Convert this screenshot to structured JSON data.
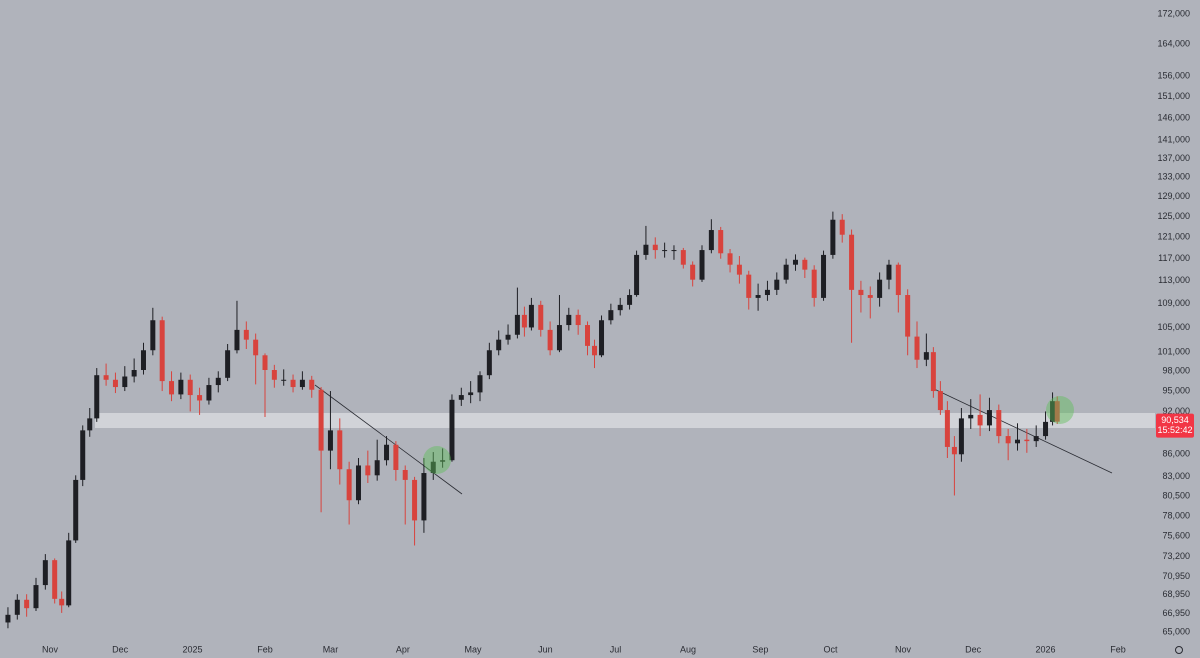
{
  "chart_data": {
    "type": "candlestick",
    "log_scale": true,
    "up_color": "#1e1f24",
    "down_color": "#d8433d",
    "xlim": [
      -21.4,
      470.7
    ],
    "ylim": [
      63700,
      175800
    ],
    "xticks": [
      {
        "value": 0,
        "label": "Nov"
      },
      {
        "value": 30,
        "label": "Dec"
      },
      {
        "value": 61,
        "label": "2025"
      },
      {
        "value": 92,
        "label": "Feb"
      },
      {
        "value": 120,
        "label": "Mar"
      },
      {
        "value": 151,
        "label": "Apr"
      },
      {
        "value": 181,
        "label": "May"
      },
      {
        "value": 212,
        "label": "Jun"
      },
      {
        "value": 242,
        "label": "Jul"
      },
      {
        "value": 273,
        "label": "Aug"
      },
      {
        "value": 304,
        "label": "Sep"
      },
      {
        "value": 334,
        "label": "Oct"
      },
      {
        "value": 365,
        "label": "Nov"
      },
      {
        "value": 395,
        "label": "Dec"
      },
      {
        "value": 426,
        "label": "2026"
      },
      {
        "value": 457,
        "label": "Feb"
      }
    ],
    "yticks": [
      {
        "value": 65000,
        "label": "65,000"
      },
      {
        "value": 66950,
        "label": "66,950"
      },
      {
        "value": 68950,
        "label": "68,950"
      },
      {
        "value": 70950,
        "label": "70,950"
      },
      {
        "value": 73200,
        "label": "73,200"
      },
      {
        "value": 75600,
        "label": "75,600"
      },
      {
        "value": 78000,
        "label": "78,000"
      },
      {
        "value": 80500,
        "label": "80,500"
      },
      {
        "value": 83000,
        "label": "83,000"
      },
      {
        "value": 86000,
        "label": "86,000"
      },
      {
        "value": 92000,
        "label": "92,000"
      },
      {
        "value": 95000,
        "label": "95,000"
      },
      {
        "value": 98000,
        "label": "98,000"
      },
      {
        "value": 101000,
        "label": "101,000"
      },
      {
        "value": 105000,
        "label": "105,000"
      },
      {
        "value": 109000,
        "label": "109,000"
      },
      {
        "value": 113000,
        "label": "113,000"
      },
      {
        "value": 117000,
        "label": "117,000"
      },
      {
        "value": 121000,
        "label": "121,000"
      },
      {
        "value": 125000,
        "label": "125,000"
      },
      {
        "value": 129000,
        "label": "129,000"
      },
      {
        "value": 133000,
        "label": "133,000"
      },
      {
        "value": 137000,
        "label": "137,000"
      },
      {
        "value": 141000,
        "label": "141,000"
      },
      {
        "value": 146000,
        "label": "146,000"
      },
      {
        "value": 151000,
        "label": "151,000"
      },
      {
        "value": 156000,
        "label": "156,000"
      },
      {
        "value": 164000,
        "label": "164,000"
      },
      {
        "value": 172000,
        "label": "172,000"
      }
    ],
    "last_price": {
      "value": 90534,
      "label": "90,534"
    },
    "countdown": "15:52:42",
    "x": [
      -18,
      -14,
      -10,
      -6,
      -2,
      2,
      5,
      8,
      11,
      14,
      17,
      20,
      24,
      28,
      32,
      36,
      40,
      44,
      48,
      52,
      56,
      60,
      64,
      68,
      72,
      76,
      80,
      84,
      88,
      92,
      96,
      100,
      104,
      108,
      112,
      116,
      120,
      124,
      128,
      132,
      136,
      140,
      144,
      148,
      152,
      156,
      160,
      164,
      168,
      172,
      176,
      180,
      184,
      188,
      192,
      196,
      200,
      203,
      206,
      210,
      214,
      218,
      222,
      226,
      230,
      233,
      236,
      240,
      244,
      248,
      251,
      255,
      259,
      263,
      267,
      271,
      275,
      279,
      283,
      287,
      291,
      295,
      299,
      303,
      307,
      311,
      315,
      319,
      323,
      327,
      331,
      335,
      339,
      343,
      347,
      351,
      355,
      359,
      363,
      367,
      371,
      375,
      378,
      381,
      384,
      387,
      390,
      394,
      398,
      402,
      406,
      410,
      414,
      418,
      422,
      426,
      429,
      431
    ],
    "open": [
      66000,
      66800,
      68400,
      67500,
      70000,
      72800,
      68500,
      67800,
      75100,
      82600,
      89300,
      91000,
      97400,
      96700,
      95600,
      97200,
      98200,
      101300,
      106200,
      96500,
      94500,
      96700,
      94400,
      93600,
      95900,
      97000,
      101300,
      104600,
      103000,
      100500,
      98200,
      96700,
      96700,
      95600,
      96700,
      95200,
      86500,
      89300,
      84000,
      80000,
      84500,
      83200,
      85200,
      87300,
      83900,
      82600,
      77500,
      83500,
      85000,
      85200,
      93700,
      94400,
      94800,
      97400,
      101300,
      103000,
      103800,
      107100,
      105000,
      108800,
      104600,
      101300,
      105400,
      107100,
      105400,
      102000,
      100500,
      106200,
      107900,
      108800,
      110500,
      117700,
      119600,
      118600,
      118600,
      118600,
      115900,
      113200,
      118600,
      122400,
      118000,
      115900,
      114100,
      110000,
      110500,
      111400,
      113200,
      115900,
      116800,
      115000,
      110000,
      117700,
      124400,
      121500,
      111400,
      110500,
      110000,
      113200,
      115900,
      110500,
      103500,
      99800,
      101000,
      95000,
      92200,
      87000,
      86000,
      91000,
      91500,
      90000,
      92200,
      88500,
      87500,
      88000,
      87800,
      88500,
      90500,
      93500
    ],
    "high": [
      67600,
      69000,
      69000,
      70800,
      73500,
      73000,
      69300,
      76000,
      83200,
      90000,
      92500,
      98500,
      99200,
      97800,
      98800,
      100000,
      102500,
      108300,
      106800,
      98000,
      97800,
      97500,
      95500,
      97000,
      98000,
      102300,
      109500,
      106000,
      104000,
      100800,
      99000,
      98300,
      97500,
      98000,
      97300,
      95600,
      95000,
      91000,
      85000,
      85500,
      86500,
      88000,
      88500,
      87800,
      84500,
      83000,
      85500,
      86300,
      86800,
      94500,
      95500,
      96500,
      98000,
      102500,
      104500,
      105500,
      111800,
      108500,
      110000,
      109500,
      106000,
      110500,
      108300,
      108000,
      106000,
      103000,
      107000,
      109000,
      110000,
      111500,
      118500,
      123200,
      121000,
      120000,
      119500,
      119000,
      116500,
      119500,
      124500,
      123000,
      118800,
      117500,
      114800,
      112500,
      113000,
      114500,
      117000,
      117800,
      117200,
      115800,
      118500,
      126000,
      125500,
      122500,
      113000,
      112000,
      114500,
      116800,
      116300,
      111500,
      106000,
      104000,
      101800,
      96500,
      93500,
      88500,
      92500,
      93800,
      94500,
      94000,
      93000,
      89500,
      90300,
      89500,
      90000,
      92000,
      94800,
      94200
    ],
    "low": [
      65400,
      66300,
      66600,
      67200,
      69500,
      68000,
      67000,
      67600,
      74800,
      81800,
      88400,
      90500,
      95800,
      94700,
      95000,
      96300,
      97500,
      100500,
      95000,
      93500,
      93800,
      92000,
      91500,
      93000,
      94800,
      96500,
      100800,
      101500,
      96000,
      91200,
      95500,
      95800,
      94800,
      95200,
      94000,
      78500,
      84000,
      82000,
      77000,
      79500,
      82200,
      82500,
      84500,
      82500,
      77000,
      74500,
      76000,
      82600,
      84200,
      85000,
      92800,
      93200,
      93500,
      96800,
      100500,
      102200,
      103200,
      103500,
      104500,
      103500,
      100500,
      101000,
      104500,
      103800,
      100500,
      98500,
      100200,
      105500,
      107000,
      108000,
      110200,
      116800,
      117000,
      117200,
      116800,
      115200,
      112000,
      112800,
      118000,
      117000,
      114500,
      112500,
      108000,
      107800,
      109500,
      110500,
      112500,
      114800,
      113500,
      108500,
      109500,
      117000,
      120000,
      102500,
      107500,
      106500,
      108500,
      111500,
      107500,
      100500,
      98500,
      98800,
      94000,
      91500,
      85500,
      80600,
      85000,
      89500,
      88500,
      89200,
      87500,
      85200,
      86500,
      86200,
      87000,
      88000,
      90000,
      90200
    ],
    "close": [
      66800,
      68400,
      67500,
      70000,
      72800,
      68500,
      67800,
      75100,
      82600,
      89300,
      91000,
      97400,
      96700,
      95600,
      97200,
      98200,
      101300,
      106200,
      96500,
      94500,
      96700,
      94400,
      93600,
      95900,
      97000,
      101300,
      104600,
      103000,
      100500,
      98200,
      96700,
      96700,
      95600,
      96700,
      95200,
      86500,
      89300,
      84000,
      80000,
      84500,
      83200,
      85200,
      87300,
      83900,
      82600,
      77500,
      83500,
      85000,
      85200,
      93700,
      94400,
      94800,
      97400,
      101300,
      103000,
      103800,
      107100,
      105000,
      108800,
      104600,
      101300,
      105400,
      107100,
      105400,
      102000,
      100500,
      106200,
      107900,
      108800,
      110500,
      117700,
      119600,
      118600,
      118600,
      118600,
      115900,
      113200,
      118600,
      122400,
      118000,
      115900,
      114100,
      110000,
      110500,
      111400,
      113200,
      115900,
      116800,
      115000,
      110000,
      117700,
      124400,
      121500,
      111400,
      110500,
      110000,
      113200,
      115900,
      110500,
      103500,
      99800,
      101000,
      95000,
      92200,
      87000,
      86000,
      91000,
      91500,
      90000,
      92200,
      88500,
      87500,
      88000,
      87800,
      88500,
      90500,
      93500,
      90534
    ]
  }
}
